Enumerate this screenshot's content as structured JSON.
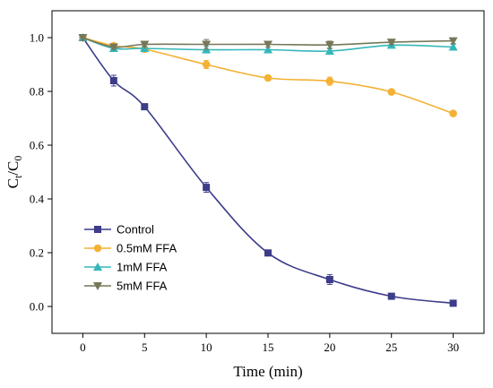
{
  "chart_data": {
    "type": "line",
    "xlabel": "Time (min)",
    "ylabel": {
      "main": "C",
      "sub1": "t",
      "mid": "/C",
      "sub2": "0"
    },
    "xlim": [
      -2.5,
      32.5
    ],
    "ylim": [
      -0.1,
      1.1
    ],
    "xticks": [
      0,
      5,
      10,
      15,
      20,
      25,
      30
    ],
    "yticks": [
      0.0,
      0.2,
      0.4,
      0.6,
      0.8,
      1.0
    ],
    "xtick_labels": [
      "0",
      "5",
      "10",
      "15",
      "20",
      "25",
      "30"
    ],
    "ytick_labels": [
      "0.0",
      "0.2",
      "0.4",
      "0.6",
      "0.8",
      "1.0"
    ],
    "grid": false,
    "legend_position": "bottom-left",
    "x": [
      0,
      2.5,
      5,
      10,
      15,
      20,
      25,
      30
    ],
    "series": [
      {
        "name": "Control",
        "color": "#3c3c8a",
        "marker": "square",
        "values": [
          1.0,
          0.84,
          0.743,
          0.443,
          0.199,
          0.1,
          0.038,
          0.012
        ],
        "errors": [
          0.01,
          0.02,
          0.008,
          0.018,
          0.008,
          0.018,
          0.005,
          0.005
        ]
      },
      {
        "name": "0.5mM FFA",
        "color": "#f4b134",
        "marker": "circle",
        "values": [
          1.0,
          0.97,
          0.957,
          0.9,
          0.85,
          0.838,
          0.798,
          0.718
        ],
        "errors": [
          0.01,
          0.008,
          0.008,
          0.015,
          0.007,
          0.015,
          0.007,
          0.008
        ]
      },
      {
        "name": "1mM FFA",
        "color": "#34b7b9",
        "marker": "triangle-up",
        "values": [
          1.0,
          0.96,
          0.96,
          0.955,
          0.955,
          0.95,
          0.972,
          0.965
        ],
        "errors": [
          0.01,
          0.01,
          0.008,
          0.012,
          0.01,
          0.012,
          0.008,
          0.01
        ]
      },
      {
        "name": "5mM FFA",
        "color": "#777759",
        "marker": "triangle-down",
        "values": [
          1.0,
          0.965,
          0.975,
          0.975,
          0.975,
          0.973,
          0.983,
          0.988
        ],
        "errors": [
          0.01,
          0.008,
          0.008,
          0.018,
          0.01,
          0.014,
          0.008,
          0.01
        ]
      }
    ]
  }
}
